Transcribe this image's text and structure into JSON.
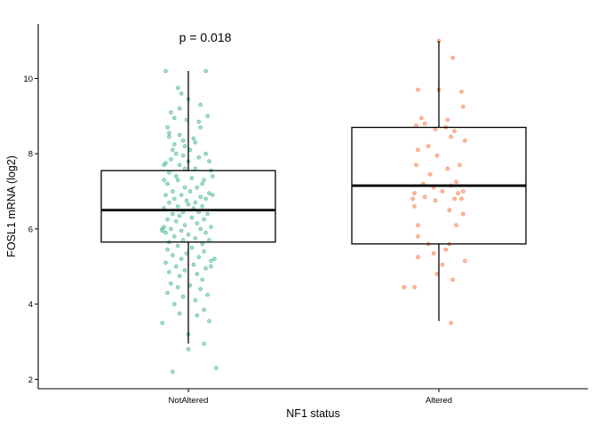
{
  "chart_data": {
    "type": "box",
    "title": "",
    "xlabel": "NF1 status",
    "ylabel": "FOSL1 mRNA (log2)",
    "ylim": [
      1.75,
      11.45
    ],
    "yticks": [
      2,
      4,
      6,
      8,
      10
    ],
    "grid": false,
    "legend": "none",
    "annotation": "p = 0.018",
    "categories": [
      "NotAltered",
      "Altered"
    ],
    "colors": {
      "NotAltered": "#66c2a5",
      "Altered": "#fc8d62"
    },
    "boxes": [
      {
        "category": "NotAltered",
        "whisker_low": 2.95,
        "q1": 5.65,
        "median": 6.5,
        "q3": 7.55,
        "whisker_high": 10.2
      },
      {
        "category": "Altered",
        "whisker_low": 3.55,
        "q1": 5.6,
        "median": 7.15,
        "q3": 8.7,
        "whisker_high": 11.0
      }
    ],
    "points": {
      "NotAltered": [
        {
          "x": -0.13,
          "y": 10.2
        },
        {
          "x": 0.1,
          "y": 10.2
        },
        {
          "x": -0.06,
          "y": 9.75
        },
        {
          "x": -0.04,
          "y": 9.6
        },
        {
          "x": 0.0,
          "y": 9.45
        },
        {
          "x": 0.07,
          "y": 9.3
        },
        {
          "x": -0.05,
          "y": 9.2
        },
        {
          "x": -0.1,
          "y": 9.1
        },
        {
          "x": 0.11,
          "y": 9.0
        },
        {
          "x": -0.08,
          "y": 8.95
        },
        {
          "x": -0.01,
          "y": 8.9
        },
        {
          "x": 0.06,
          "y": 8.85
        },
        {
          "x": -0.12,
          "y": 8.7
        },
        {
          "x": 0.07,
          "y": 8.7
        },
        {
          "x": -0.11,
          "y": 8.55
        },
        {
          "x": -0.05,
          "y": 8.5
        },
        {
          "x": -0.11,
          "y": 8.45
        },
        {
          "x": 0.03,
          "y": 8.4
        },
        {
          "x": -0.03,
          "y": 8.35
        },
        {
          "x": 0.04,
          "y": 8.3
        },
        {
          "x": -0.08,
          "y": 8.25
        },
        {
          "x": -0.02,
          "y": 8.2
        },
        {
          "x": -0.09,
          "y": 8.1
        },
        {
          "x": 0.01,
          "y": 8.1
        },
        {
          "x": 0.1,
          "y": 8.0
        },
        {
          "x": -0.07,
          "y": 8.0
        },
        {
          "x": -0.03,
          "y": 7.95
        },
        {
          "x": 0.06,
          "y": 7.9
        },
        {
          "x": -0.1,
          "y": 7.85
        },
        {
          "x": 0.12,
          "y": 7.8
        },
        {
          "x": 0.0,
          "y": 7.8
        },
        {
          "x": -0.13,
          "y": 7.75
        },
        {
          "x": -0.05,
          "y": 7.7
        },
        {
          "x": -0.02,
          "y": 7.6
        },
        {
          "x": 0.04,
          "y": 7.6
        },
        {
          "x": 0.13,
          "y": 7.55
        },
        {
          "x": -0.11,
          "y": 7.5
        },
        {
          "x": -0.07,
          "y": 7.4
        },
        {
          "x": 0.02,
          "y": 7.35
        },
        {
          "x": 0.09,
          "y": 7.3
        },
        {
          "x": -0.06,
          "y": 7.3
        },
        {
          "x": 0.08,
          "y": 7.2
        },
        {
          "x": -0.12,
          "y": 7.2
        },
        {
          "x": -0.02,
          "y": 7.1
        },
        {
          "x": 0.05,
          "y": 7.1
        },
        {
          "x": -0.09,
          "y": 7.0
        },
        {
          "x": 0.01,
          "y": 7.0
        },
        {
          "x": 0.12,
          "y": 6.95
        },
        {
          "x": -0.13,
          "y": 6.9
        },
        {
          "x": -0.04,
          "y": 6.9
        },
        {
          "x": 0.07,
          "y": 6.85
        },
        {
          "x": 0.1,
          "y": 6.8
        },
        {
          "x": -0.08,
          "y": 6.8
        },
        {
          "x": -0.01,
          "y": 6.75
        },
        {
          "x": 0.04,
          "y": 6.7
        },
        {
          "x": -0.11,
          "y": 6.7
        },
        {
          "x": 0.0,
          "y": 6.65
        },
        {
          "x": -0.06,
          "y": 6.6
        },
        {
          "x": 0.08,
          "y": 6.6
        },
        {
          "x": -0.14,
          "y": 6.55
        },
        {
          "x": 0.03,
          "y": 6.55
        },
        {
          "x": -0.03,
          "y": 6.45
        },
        {
          "x": 0.06,
          "y": 6.45
        },
        {
          "x": -0.09,
          "y": 6.4
        },
        {
          "x": 0.11,
          "y": 6.4
        },
        {
          "x": -0.05,
          "y": 6.35
        },
        {
          "x": 0.02,
          "y": 6.3
        },
        {
          "x": -0.12,
          "y": 6.25
        },
        {
          "x": 0.09,
          "y": 6.25
        },
        {
          "x": -0.07,
          "y": 6.2
        },
        {
          "x": 0.05,
          "y": 6.15
        },
        {
          "x": -0.02,
          "y": 6.1
        },
        {
          "x": -0.14,
          "y": 6.05
        },
        {
          "x": 0.13,
          "y": 6.05
        },
        {
          "x": -0.1,
          "y": 6.0
        },
        {
          "x": 0.07,
          "y": 6.0
        },
        {
          "x": -0.04,
          "y": 5.95
        },
        {
          "x": 0.1,
          "y": 5.9
        },
        {
          "x": -0.13,
          "y": 5.9
        },
        {
          "x": 0.0,
          "y": 5.85
        },
        {
          "x": -0.08,
          "y": 5.8
        },
        {
          "x": 0.04,
          "y": 5.75
        },
        {
          "x": 0.12,
          "y": 5.7
        },
        {
          "x": -0.03,
          "y": 5.7
        },
        {
          "x": -0.11,
          "y": 5.65
        },
        {
          "x": 0.08,
          "y": 5.6
        },
        {
          "x": -0.06,
          "y": 5.55
        },
        {
          "x": 0.02,
          "y": 5.5
        },
        {
          "x": -0.12,
          "y": 5.45
        },
        {
          "x": 0.09,
          "y": 5.4
        },
        {
          "x": -0.01,
          "y": 5.35
        },
        {
          "x": -0.09,
          "y": 5.3
        },
        {
          "x": 0.06,
          "y": 5.25
        },
        {
          "x": -0.04,
          "y": 5.2
        },
        {
          "x": 0.13,
          "y": 5.15
        },
        {
          "x": -0.13,
          "y": 5.1
        },
        {
          "x": 0.03,
          "y": 5.05
        },
        {
          "x": -0.07,
          "y": 5.0
        },
        {
          "x": 0.1,
          "y": 4.95
        },
        {
          "x": -0.02,
          "y": 4.9
        },
        {
          "x": -0.11,
          "y": 4.85
        },
        {
          "x": 0.05,
          "y": 4.8
        },
        {
          "x": -0.05,
          "y": 4.75
        },
        {
          "x": 0.08,
          "y": 4.65
        },
        {
          "x": -0.1,
          "y": 4.55
        },
        {
          "x": 0.01,
          "y": 4.5
        },
        {
          "x": -0.06,
          "y": 4.45
        },
        {
          "x": 0.07,
          "y": 4.4
        },
        {
          "x": -0.12,
          "y": 4.3
        },
        {
          "x": 0.11,
          "y": 4.25
        },
        {
          "x": -0.03,
          "y": 4.2
        },
        {
          "x": 0.04,
          "y": 4.1
        },
        {
          "x": -0.08,
          "y": 4.0
        },
        {
          "x": 0.09,
          "y": 3.85
        },
        {
          "x": -0.05,
          "y": 3.75
        },
        {
          "x": 0.05,
          "y": 3.7
        },
        {
          "x": -0.15,
          "y": 3.5
        },
        {
          "x": 0.12,
          "y": 3.55
        },
        {
          "x": 0.0,
          "y": 3.2
        },
        {
          "x": 0.09,
          "y": 2.95
        },
        {
          "x": 0.0,
          "y": 2.8
        },
        {
          "x": -0.09,
          "y": 2.2
        },
        {
          "x": 0.16,
          "y": 2.3
        },
        {
          "x": -0.14,
          "y": 7.7
        },
        {
          "x": 0.14,
          "y": 7.4
        },
        {
          "x": -0.15,
          "y": 6.0
        },
        {
          "x": 0.15,
          "y": 5.2
        },
        {
          "x": -0.15,
          "y": 5.95
        },
        {
          "x": 0.14,
          "y": 6.9
        },
        {
          "x": -0.14,
          "y": 7.3
        },
        {
          "x": 0.13,
          "y": 5.0
        }
      ],
      "Altered": [
        {
          "x": 0.0,
          "y": 11.0
        },
        {
          "x": 0.08,
          "y": 10.55
        },
        {
          "x": -0.12,
          "y": 9.7
        },
        {
          "x": 0.0,
          "y": 9.7
        },
        {
          "x": 0.13,
          "y": 9.65
        },
        {
          "x": 0.14,
          "y": 9.25
        },
        {
          "x": 0.05,
          "y": 8.9
        },
        {
          "x": -0.1,
          "y": 8.95
        },
        {
          "x": -0.08,
          "y": 8.8
        },
        {
          "x": -0.13,
          "y": 8.75
        },
        {
          "x": 0.09,
          "y": 8.6
        },
        {
          "x": 0.04,
          "y": 8.7
        },
        {
          "x": -0.02,
          "y": 8.65
        },
        {
          "x": 0.07,
          "y": 8.45
        },
        {
          "x": 0.15,
          "y": 8.35
        },
        {
          "x": -0.06,
          "y": 8.2
        },
        {
          "x": -0.12,
          "y": 8.1
        },
        {
          "x": -0.01,
          "y": 7.95
        },
        {
          "x": 0.12,
          "y": 7.7
        },
        {
          "x": -0.13,
          "y": 7.7
        },
        {
          "x": 0.05,
          "y": 7.6
        },
        {
          "x": -0.05,
          "y": 7.45
        },
        {
          "x": 0.1,
          "y": 7.25
        },
        {
          "x": -0.09,
          "y": 7.2
        },
        {
          "x": 0.07,
          "y": 7.15
        },
        {
          "x": -0.03,
          "y": 7.1
        },
        {
          "x": 0.02,
          "y": 7.0
        },
        {
          "x": 0.11,
          "y": 6.95
        },
        {
          "x": -0.14,
          "y": 6.95
        },
        {
          "x": 0.14,
          "y": 7.0
        },
        {
          "x": -0.08,
          "y": 6.85
        },
        {
          "x": 0.09,
          "y": 6.8
        },
        {
          "x": -0.02,
          "y": 6.75
        },
        {
          "x": 0.13,
          "y": 6.8
        },
        {
          "x": -0.15,
          "y": 6.8
        },
        {
          "x": -0.14,
          "y": 6.6
        },
        {
          "x": 0.06,
          "y": 6.5
        },
        {
          "x": 0.14,
          "y": 6.4
        },
        {
          "x": -0.12,
          "y": 6.1
        },
        {
          "x": 0.1,
          "y": 6.1
        },
        {
          "x": -0.12,
          "y": 5.8
        },
        {
          "x": -0.06,
          "y": 5.6
        },
        {
          "x": 0.06,
          "y": 5.6
        },
        {
          "x": -0.03,
          "y": 5.35
        },
        {
          "x": 0.04,
          "y": 5.45
        },
        {
          "x": -0.12,
          "y": 5.25
        },
        {
          "x": 0.15,
          "y": 5.15
        },
        {
          "x": 0.02,
          "y": 5.05
        },
        {
          "x": -0.01,
          "y": 4.8
        },
        {
          "x": 0.08,
          "y": 4.65
        },
        {
          "x": -0.2,
          "y": 4.45
        },
        {
          "x": -0.14,
          "y": 4.45
        },
        {
          "x": 0.07,
          "y": 3.5
        }
      ]
    }
  }
}
